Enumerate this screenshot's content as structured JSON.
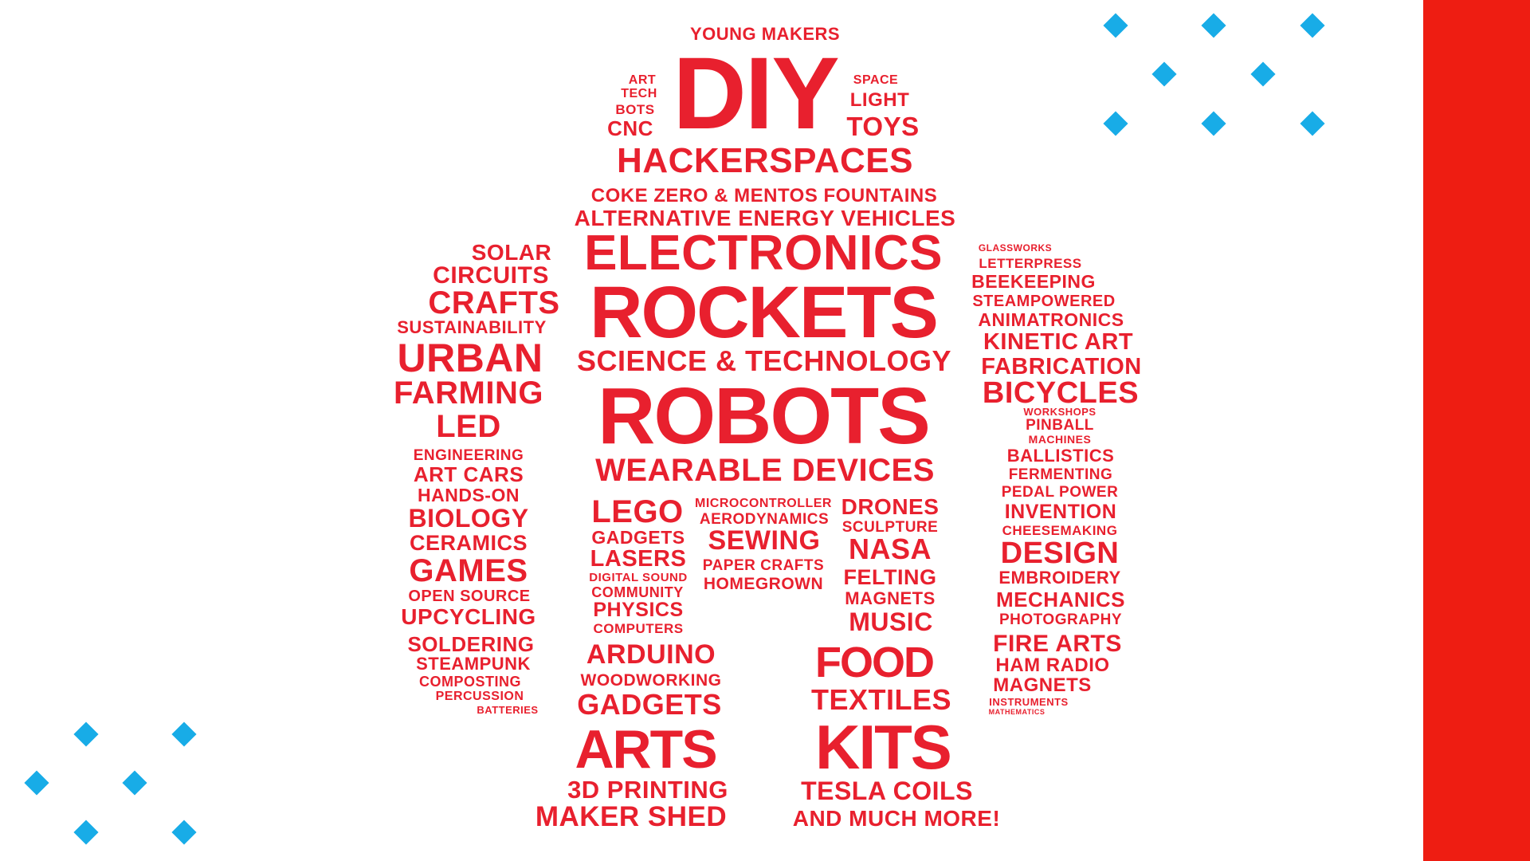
{
  "colors": {
    "word": "#e8202e",
    "stripe": "#ee1d12",
    "diamond": "#18ace7",
    "background": "#ffffff"
  },
  "decor": {
    "diamonds": "light-blue-diamond-icon grid",
    "stripe": "red vertical stripe"
  },
  "words": [
    {
      "text": "YOUNG MAKERS"
    },
    {
      "text": "ART"
    },
    {
      "text": "TECH"
    },
    {
      "text": "BOTS"
    },
    {
      "text": "CNC"
    },
    {
      "text": "DIY"
    },
    {
      "text": "SPACE"
    },
    {
      "text": "LIGHT"
    },
    {
      "text": "TOYS"
    },
    {
      "text": "HACKERSPACES"
    },
    {
      "text": "COKE ZERO & MENTOS FOUNTAINS"
    },
    {
      "text": "ALTERNATIVE ENERGY VEHICLES"
    },
    {
      "text": "ELECTRONICS"
    },
    {
      "text": "ROCKETS"
    },
    {
      "text": "SCIENCE & TECHNOLOGY"
    },
    {
      "text": "ROBOTS"
    },
    {
      "text": "WEARABLE DEVICES"
    },
    {
      "text": "SOLAR"
    },
    {
      "text": "CIRCUITS"
    },
    {
      "text": "CRAFTS"
    },
    {
      "text": "SUSTAINABILITY"
    },
    {
      "text": "URBAN"
    },
    {
      "text": "FARMING"
    },
    {
      "text": "LED"
    },
    {
      "text": "ENGINEERING"
    },
    {
      "text": "ART CARS"
    },
    {
      "text": "HANDS-ON"
    },
    {
      "text": "BIOLOGY"
    },
    {
      "text": "CERAMICS"
    },
    {
      "text": "GAMES"
    },
    {
      "text": "OPEN SOURCE"
    },
    {
      "text": "UPCYCLING"
    },
    {
      "text": "SOLDERING"
    },
    {
      "text": "STEAMPUNK"
    },
    {
      "text": "COMPOSTING"
    },
    {
      "text": "PERCUSSION"
    },
    {
      "text": "BATTERIES"
    },
    {
      "text": "GLASSWORKS"
    },
    {
      "text": "LETTERPRESS"
    },
    {
      "text": "BEEKEEPING"
    },
    {
      "text": "STEAMPOWERED"
    },
    {
      "text": "ANIMATRONICS"
    },
    {
      "text": "KINETIC ART"
    },
    {
      "text": "FABRICATION"
    },
    {
      "text": "BICYCLES"
    },
    {
      "text": "WORKSHOPS"
    },
    {
      "text": "PINBALL"
    },
    {
      "text": "MACHINES"
    },
    {
      "text": "BALLISTICS"
    },
    {
      "text": "FERMENTING"
    },
    {
      "text": "PEDAL POWER"
    },
    {
      "text": "INVENTION"
    },
    {
      "text": "CHEESEMAKING"
    },
    {
      "text": "DESIGN"
    },
    {
      "text": "EMBROIDERY"
    },
    {
      "text": "MECHANICS"
    },
    {
      "text": "PHOTOGRAPHY"
    },
    {
      "text": "FIRE ARTS"
    },
    {
      "text": "HAM RADIO"
    },
    {
      "text": "MAGNETS"
    },
    {
      "text": "INSTRUMENTS"
    },
    {
      "text": "MATHEMATICS"
    },
    {
      "text": "LEGO"
    },
    {
      "text": "GADGETS"
    },
    {
      "text": "LASERS"
    },
    {
      "text": "DIGITAL SOUND"
    },
    {
      "text": "COMMUNITY"
    },
    {
      "text": "PHYSICS"
    },
    {
      "text": "COMPUTERS"
    },
    {
      "text": "MICROCONTROLLER"
    },
    {
      "text": "AERODYNAMICS"
    },
    {
      "text": "SEWING"
    },
    {
      "text": "PAPER CRAFTS"
    },
    {
      "text": "HOMEGROWN"
    },
    {
      "text": "DRONES"
    },
    {
      "text": "SCULPTURE"
    },
    {
      "text": "NASA"
    },
    {
      "text": "FELTING"
    },
    {
      "text": "MAGNETS"
    },
    {
      "text": "MUSIC"
    },
    {
      "text": "ARDUINO"
    },
    {
      "text": "WOODWORKING"
    },
    {
      "text": "GADGETS"
    },
    {
      "text": "ARTS"
    },
    {
      "text": "3D PRINTING"
    },
    {
      "text": "MAKER SHED"
    },
    {
      "text": "FOOD"
    },
    {
      "text": "TEXTILES"
    },
    {
      "text": "KITS"
    },
    {
      "text": "TESLA COILS"
    },
    {
      "text": "AND MUCH MORE!"
    }
  ]
}
